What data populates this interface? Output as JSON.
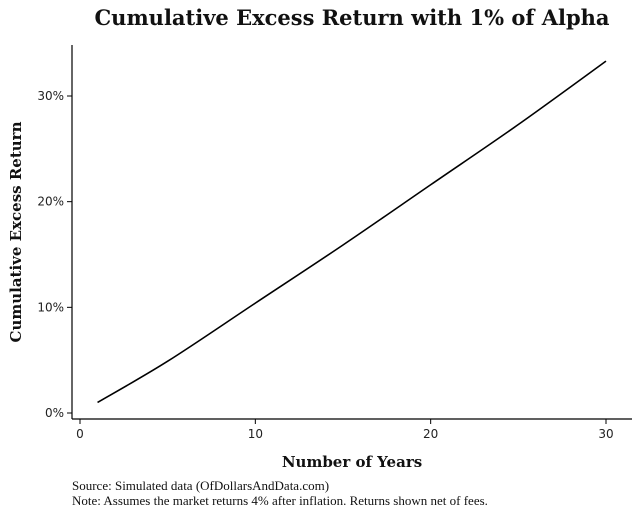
{
  "chart_data": {
    "type": "line",
    "title": "Cumulative Excess Return with 1% of Alpha",
    "xlabel": "Number of Years",
    "ylabel": "Cumulative Excess Return",
    "xlim": [
      0,
      31
    ],
    "ylim": [
      0,
      0.34
    ],
    "x_ticks": [
      0,
      10,
      20,
      30
    ],
    "x_tick_labels": [
      "0",
      "10",
      "20",
      "30"
    ],
    "y_ticks": [
      0,
      0.1,
      0.2,
      0.3
    ],
    "y_tick_labels": [
      "0%",
      "10%",
      "20%",
      "30%"
    ],
    "grid": false,
    "legend": "none",
    "series": [
      {
        "color": "#000000",
        "x": [
          1,
          5,
          10,
          15,
          20,
          25,
          30
        ],
        "y": [
          0.01,
          0.049,
          0.104,
          0.159,
          0.216,
          0.273,
          0.333
        ]
      }
    ]
  },
  "notes": {
    "source": "Source:  Simulated data (OfDollarsAndData.com)",
    "note": "Note: Assumes the market returns 4% after inflation. Returns shown net of fees."
  }
}
